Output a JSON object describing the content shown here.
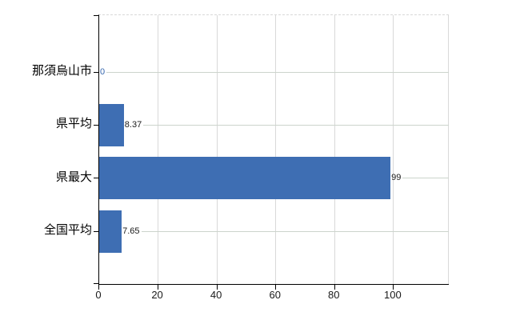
{
  "chart_data": {
    "type": "bar",
    "orientation": "horizontal",
    "title": "",
    "legend": false,
    "grid": true,
    "categories": [
      "那須烏山市",
      "県平均",
      "県最大",
      "全国平均"
    ],
    "values": [
      0,
      8.37,
      99,
      7.65
    ],
    "value_labels": [
      "0",
      "8.37",
      "99",
      "7.65"
    ],
    "value_label_colors": [
      "#3566ad",
      "#1a1a1a",
      "#1a1a1a",
      "#1a1a1a"
    ],
    "xticks": [
      0,
      20,
      40,
      60,
      80,
      100
    ],
    "xtick_labels": [
      "0",
      "20",
      "40",
      "60",
      "80",
      "100"
    ],
    "xlim": [
      0,
      118.8
    ],
    "colors": {
      "bar": "#3e6eb3",
      "axis": "#000000",
      "grid_vertical": "#d9d9d9",
      "row_line": "#ccd4cc",
      "top_border": "#d9d9d9",
      "tick_label": "#1a1a1a",
      "category_label": "#000000"
    }
  }
}
